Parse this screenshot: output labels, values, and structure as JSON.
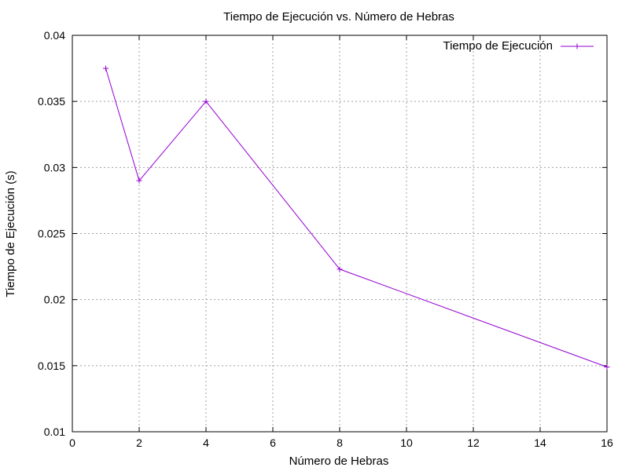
{
  "chart_data": {
    "type": "line",
    "title": "Tiempo de Ejecución vs. Número de Hebras",
    "xlabel": "Número de Hebras",
    "ylabel": "Tiempo de Ejecución (s)",
    "xlim": [
      0,
      16
    ],
    "ylim": [
      0.01,
      0.04
    ],
    "xticks": [
      0,
      2,
      4,
      6,
      8,
      10,
      12,
      14,
      16
    ],
    "xtick_labels": [
      "0",
      "2",
      "4",
      "6",
      "8",
      "10",
      "12",
      "14",
      "16"
    ],
    "yticks": [
      0.01,
      0.015,
      0.02,
      0.025,
      0.03,
      0.035,
      0.04
    ],
    "ytick_labels": [
      "0.01",
      "0.015",
      "0.02",
      "0.025",
      "0.03",
      "0.035",
      "0.04"
    ],
    "grid": true,
    "legend_position": "top-right",
    "series": [
      {
        "name": "Tiempo de Ejecución",
        "color": "#9400d3",
        "marker": "plus",
        "x": [
          1,
          2,
          4,
          8,
          16
        ],
        "y": [
          0.0375,
          0.029,
          0.035,
          0.0223,
          0.0149
        ]
      }
    ]
  }
}
